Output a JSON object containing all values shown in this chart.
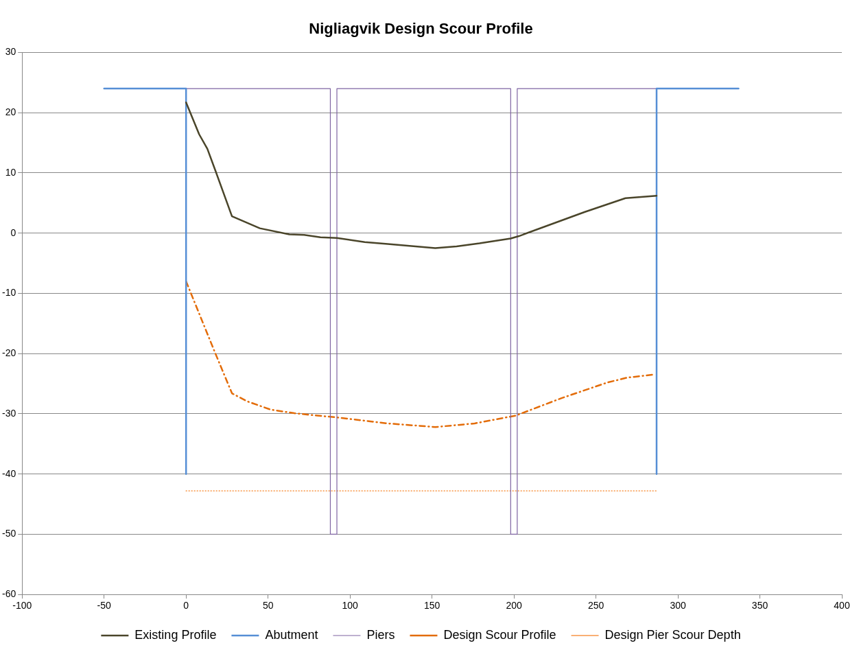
{
  "chart_data": {
    "type": "line",
    "title": "Nigliagvik Design Scour Profile",
    "xlim": [
      -100,
      400
    ],
    "xticks": [
      -100,
      -50,
      0,
      50,
      100,
      150,
      200,
      250,
      300,
      350,
      400
    ],
    "ylim": [
      -60,
      30
    ],
    "yticks": [
      -60,
      -50,
      -40,
      -30,
      -20,
      -10,
      0,
      10,
      20,
      30
    ],
    "grid": "y",
    "legend": "bottom",
    "marker": "none",
    "series": [
      {
        "name": "Existing Profile",
        "color": "#4a452a",
        "line_style": "solid",
        "x": [
          0,
          8,
          13,
          18,
          28,
          45,
          63,
          72,
          82,
          92,
          109,
          123,
          152,
          165,
          179,
          198,
          203,
          227,
          243,
          268,
          287
        ],
        "values": [
          21.7,
          16.4,
          14,
          10.3,
          2.8,
          0.8,
          -0.2,
          -0.3,
          -0.7,
          -0.8,
          -1.5,
          -1.8,
          -2.5,
          -2.2,
          -1.7,
          -0.9,
          -0.5,
          1.9,
          3.5,
          5.8,
          6.2
        ]
      },
      {
        "name": "Abutment",
        "color": "#558ed5",
        "line_style": "solid",
        "x": [
          -50,
          0,
          0,
          null,
          287,
          287,
          287,
          337
        ],
        "values": [
          24,
          24,
          -40,
          null,
          -40,
          24,
          24,
          24
        ]
      },
      {
        "name": "Piers",
        "color": "#7f64a2",
        "line_style": "solid",
        "x": [
          0,
          88,
          88,
          92,
          92,
          198,
          198,
          202,
          202,
          287
        ],
        "values": [
          24,
          24,
          -50,
          -50,
          24,
          24,
          -50,
          -50,
          24,
          24
        ]
      },
      {
        "name": "Design Scour Profile",
        "color": "#e36c09",
        "line_style": "dashed",
        "x": [
          0,
          17,
          28,
          37,
          51.5,
          66,
          80,
          92,
          123,
          152,
          176,
          201,
          229,
          257,
          269,
          285
        ],
        "values": [
          -8,
          -19.4,
          -26.6,
          -27.9,
          -29.3,
          -29.9,
          -30.3,
          -30.6,
          -31.6,
          -32.2,
          -31.6,
          -30.3,
          -27.4,
          -24.8,
          -24,
          -23.5
        ]
      },
      {
        "name": "Design Pier Scour Depth",
        "color": "#f79646",
        "line_style": "dotted",
        "x": [
          0,
          287
        ],
        "values": [
          -42.8,
          -42.8
        ]
      }
    ]
  }
}
